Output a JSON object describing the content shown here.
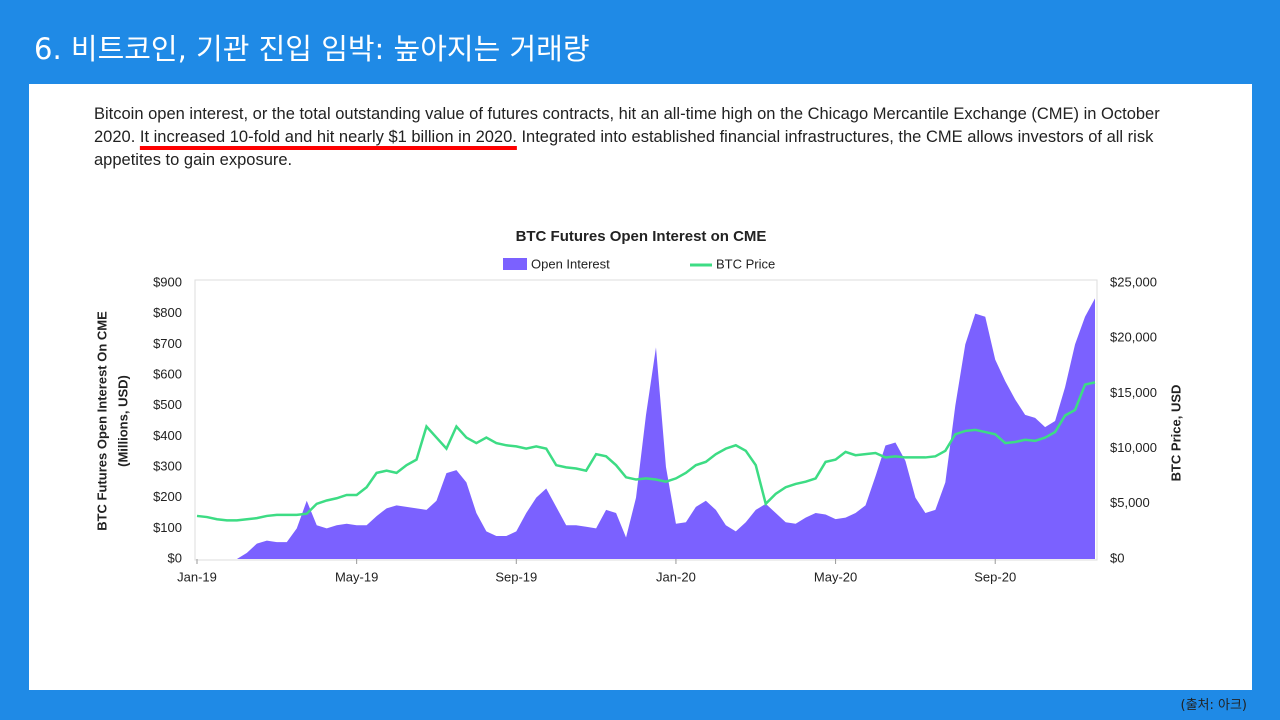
{
  "slide_title": "6. 비트코인, 기관 진입 임박: 높아지는 거래량",
  "body": {
    "before": "Bitcoin open interest, or the total outstanding value of futures contracts, hit an all-time high on the Chicago Mercantile Exchange (CME) in October 2020. ",
    "highlight": "It increased 10-fold and hit nearly $1 billion in 2020.",
    "after": " Integrated into established financial infrastructures, the CME allows investors of all risk appetites to gain exposure."
  },
  "source": "(출처: 아크)",
  "chart_data": {
    "type": "line",
    "title": "BTC Futures Open Interest on CME",
    "ylabel": [
      "BTC Futures Open Interest On CME",
      "(Millions, USD)"
    ],
    "y2label": "BTC Price, USD",
    "legend": "top",
    "categories": [
      "Jan-19",
      null,
      null,
      null,
      null,
      null,
      null,
      null,
      null,
      null,
      null,
      null,
      null,
      null,
      null,
      null,
      "May-19",
      null,
      null,
      null,
      null,
      null,
      null,
      null,
      null,
      null,
      null,
      null,
      null,
      null,
      null,
      null,
      "Sep-19",
      null,
      null,
      null,
      null,
      null,
      null,
      null,
      null,
      null,
      null,
      null,
      null,
      null,
      null,
      null,
      "Jan-20",
      null,
      null,
      null,
      null,
      null,
      null,
      null,
      null,
      null,
      null,
      null,
      null,
      null,
      null,
      null,
      "May-20",
      null,
      null,
      null,
      null,
      null,
      null,
      null,
      null,
      null,
      null,
      null,
      null,
      null,
      null,
      null,
      "Sep-20",
      null,
      null,
      null,
      null,
      null,
      null,
      null,
      null,
      null,
      null
    ],
    "series": [
      {
        "name": "Open Interest",
        "type": "area",
        "color": "#7b61ff",
        "values": [
          0,
          0,
          0,
          0,
          0,
          20,
          50,
          60,
          55,
          55,
          100,
          190,
          110,
          100,
          110,
          115,
          110,
          110,
          140,
          165,
          175,
          170,
          165,
          160,
          190,
          280,
          290,
          250,
          150,
          90,
          75,
          75,
          90,
          150,
          200,
          230,
          170,
          110,
          110,
          105,
          100,
          160,
          150,
          70,
          200,
          470,
          690,
          300,
          115,
          120,
          170,
          190,
          160,
          110,
          90,
          120,
          160,
          180,
          150,
          120,
          115,
          135,
          150,
          145,
          130,
          135,
          150,
          175,
          270,
          370,
          380,
          320,
          200,
          150,
          160,
          250,
          500,
          700,
          800,
          790,
          650,
          580,
          520,
          470,
          460,
          430,
          450,
          560,
          700,
          790,
          850
        ]
      },
      {
        "name": "BTC Price",
        "type": "line",
        "axis": "y2",
        "color": "#3ddc84",
        "values": [
          3900,
          3800,
          3600,
          3500,
          3500,
          3600,
          3700,
          3900,
          4000,
          4000,
          4000,
          4100,
          5000,
          5300,
          5500,
          5800,
          5800,
          6500,
          7800,
          8000,
          7800,
          8500,
          9000,
          12000,
          11000,
          10000,
          12000,
          11000,
          10500,
          11000,
          10500,
          10300,
          10200,
          10000,
          10200,
          10000,
          8500,
          8300,
          8200,
          8000,
          9500,
          9300,
          8500,
          7400,
          7200,
          7300,
          7200,
          7000,
          7300,
          7800,
          8500,
          8800,
          9500,
          10000,
          10300,
          9800,
          8500,
          5000,
          5900,
          6500,
          6800,
          7000,
          7300,
          8800,
          9000,
          9700,
          9400,
          9500,
          9600,
          9200,
          9300,
          9200,
          9200,
          9200,
          9300,
          9800,
          11300,
          11600,
          11700,
          11500,
          11300,
          10500,
          10600,
          10800,
          10700,
          11000,
          11500,
          13000,
          13500,
          15800,
          16000
        ]
      }
    ],
    "ylim": [
      0,
      900
    ],
    "yticks": [
      {
        "value": 0,
        "label": "$0"
      },
      {
        "value": 100,
        "label": "$100"
      },
      {
        "value": 200,
        "label": "$200"
      },
      {
        "value": 300,
        "label": "$300"
      },
      {
        "value": 400,
        "label": "$400"
      },
      {
        "value": 500,
        "label": "$500"
      },
      {
        "value": 600,
        "label": "$600"
      },
      {
        "value": 700,
        "label": "$700"
      },
      {
        "value": 800,
        "label": "$800"
      },
      {
        "value": 900,
        "label": "$900"
      }
    ],
    "y2lim": [
      0,
      25000
    ],
    "y2ticks": [
      {
        "value": 0,
        "label": "$0"
      },
      {
        "value": 5000,
        "label": "$5,000"
      },
      {
        "value": 10000,
        "label": "$10,000"
      },
      {
        "value": 15000,
        "label": "$15,000"
      },
      {
        "value": 20000,
        "label": "$20,000"
      },
      {
        "value": 25000,
        "label": "$25,000"
      }
    ]
  }
}
